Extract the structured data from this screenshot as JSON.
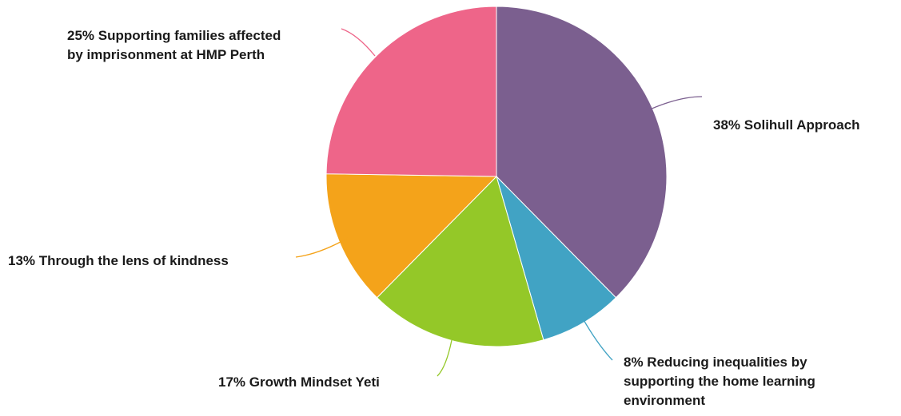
{
  "chart_data": {
    "type": "pie",
    "title": "",
    "start_angle_deg": 0,
    "direction": "clockwise",
    "slices": [
      {
        "label": "38% Solihull Approach",
        "value": 38,
        "color": "#7b5f8f",
        "label_lines": [
          "38% Solihull Approach"
        ]
      },
      {
        "label": "8% Reducing inequalities by supporting the home learning environment",
        "value": 8,
        "color": "#41a3c4",
        "label_lines": [
          "8% Reducing inequalities by",
          "supporting the home learning",
          "environment"
        ]
      },
      {
        "label": "17% Growth Mindset Yeti",
        "value": 17,
        "color": "#94c828",
        "label_lines": [
          "17% Growth Mindset Yeti"
        ]
      },
      {
        "label": "13% Through the lens of kindness",
        "value": 13,
        "color": "#f4a31a",
        "label_lines": [
          "13% Through the lens of kindness"
        ]
      },
      {
        "label": "25% Supporting families affected by imprisonment at HMP Perth",
        "value": 25,
        "color": "#ee6589",
        "label_lines": [
          "25% Supporting families affected",
          "by imprisonment at HMP Perth"
        ]
      }
    ]
  }
}
